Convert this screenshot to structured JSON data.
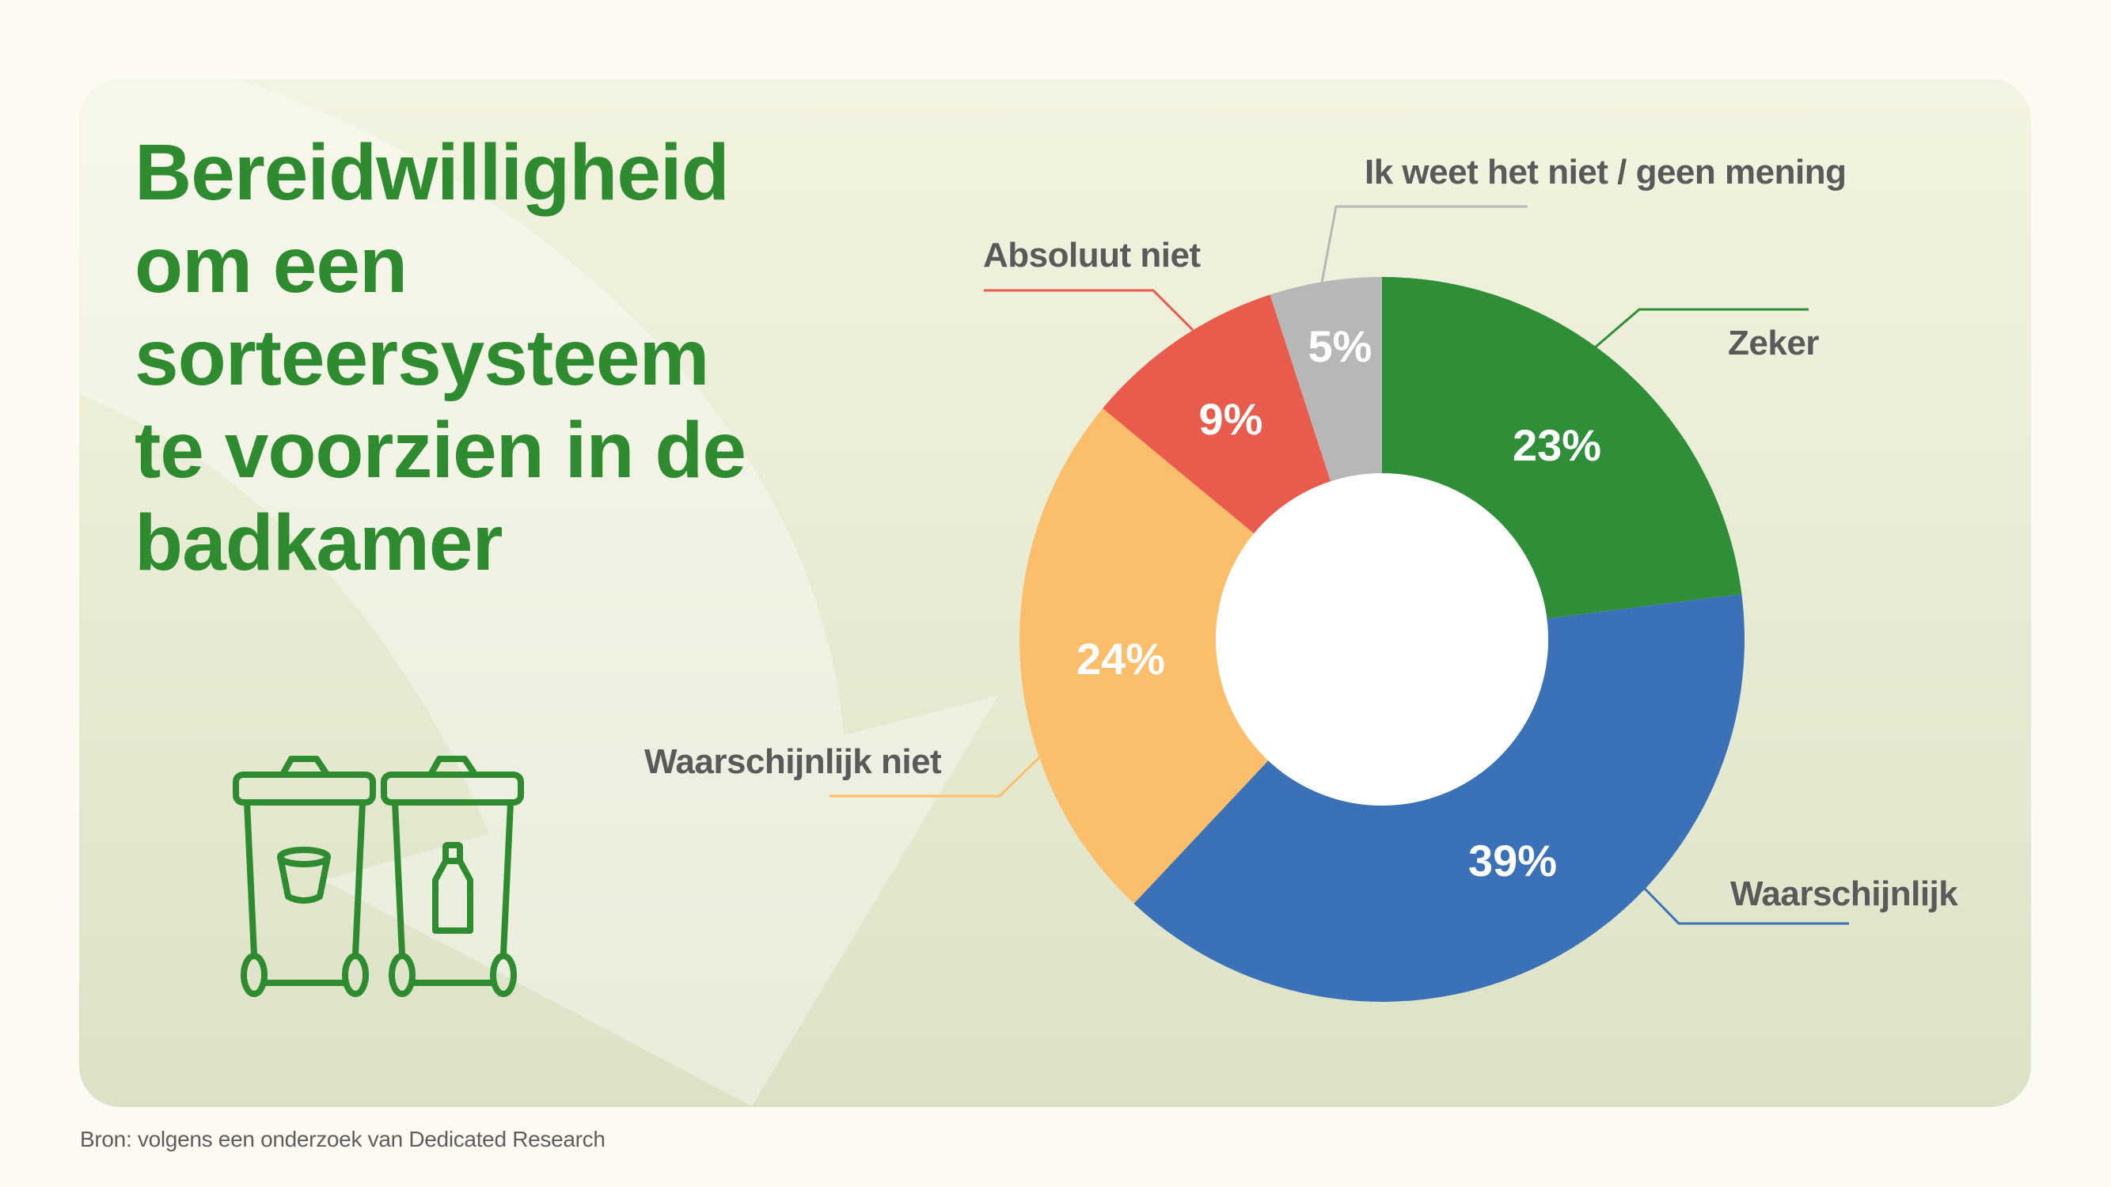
{
  "title_lines": [
    "Bereidwilligheid",
    "om een",
    "sorteersysteem",
    "te voorzien in de",
    "badkamer"
  ],
  "source": "Bron: volgens een onderzoek van Dedicated Research",
  "icons": {
    "bins": "recycling-bins-icon",
    "left_bin_symbol": "cup-icon",
    "right_bin_symbol": "bottle-icon"
  },
  "colors": {
    "page_background": "#fdfaf2",
    "title": "#2e8b30",
    "label_text": "#5a5a5a",
    "center_hole": "#ffffff"
  },
  "chart_data": {
    "type": "pie",
    "subtype": "donut",
    "title": "Bereidwilligheid om een sorteersysteem te voorzien in de badkamer",
    "unit": "%",
    "start_angle_deg": 0,
    "direction": "clockwise",
    "categories": [
      "Zeker",
      "Waarschijnlijk",
      "Waarschijnlijk niet",
      "Absoluut niet",
      "Ik weet het niet / geen mening"
    ],
    "values": [
      23,
      39,
      24,
      9,
      5
    ],
    "value_labels": [
      "23%",
      "39%",
      "24%",
      "9%",
      "5%"
    ],
    "slice_colors": [
      "#2e8f38",
      "#3b72b7",
      "#fbbf6b",
      "#e95c4d",
      "#b7b7b7"
    ],
    "legend": "leader-line labels around donut"
  }
}
